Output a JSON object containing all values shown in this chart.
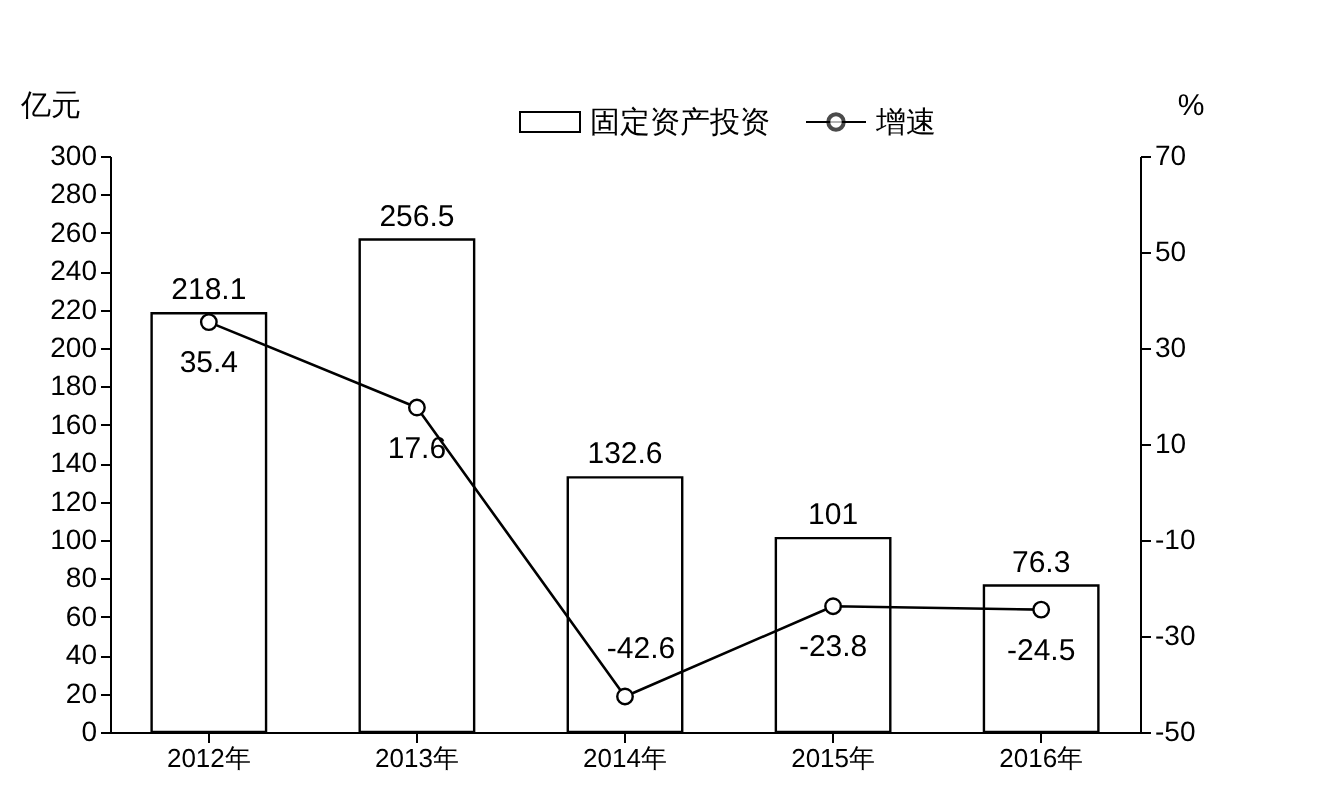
{
  "chart_data": {
    "type": "bar",
    "categories": [
      "2012年",
      "2013年",
      "2014年",
      "2015年",
      "2016年"
    ],
    "series": [
      {
        "name": "固定资产投资",
        "color": "#ffffff",
        "values": [
          218.1,
          256.5,
          132.6,
          101,
          76.3
        ]
      },
      {
        "name": "增速",
        "type": "line",
        "axis": "y2",
        "color": "#000000",
        "values": [
          35.4,
          17.6,
          -42.6,
          -23.8,
          -24.5
        ]
      }
    ],
    "ylabel": "亿元",
    "y2label": "%",
    "ylim": [
      0,
      300
    ],
    "yticks": [
      0,
      20,
      40,
      60,
      80,
      100,
      120,
      140,
      160,
      180,
      200,
      220,
      240,
      260,
      280,
      300
    ],
    "y2lim": [
      -50,
      70
    ],
    "y2ticks": [
      -50,
      -30,
      -10,
      10,
      30,
      50,
      70
    ],
    "data_labels": true,
    "legend": "top",
    "marker": "circle",
    "grid": false
  }
}
